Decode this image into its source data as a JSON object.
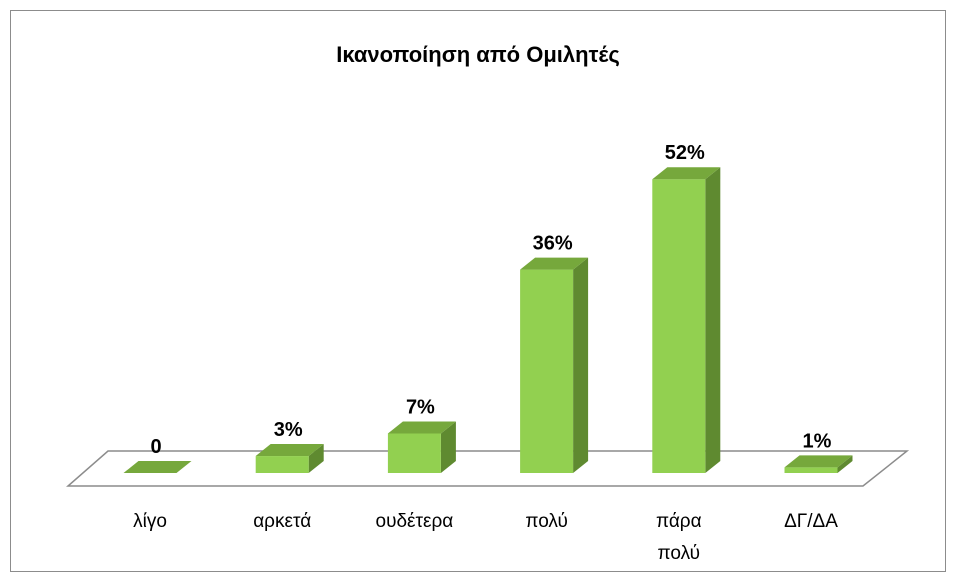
{
  "chart_data": {
    "type": "bar3d",
    "title": "Ικανοποίηση από Ομιλητές",
    "categories": [
      "λίγο",
      "αρκετά",
      "ουδέτερα",
      "πολύ",
      "πάρα πολύ",
      "ΔΓ/ΔΑ"
    ],
    "values": [
      0,
      3,
      7,
      36,
      52,
      1
    ],
    "value_labels": [
      "0",
      "3%",
      "7%",
      "36%",
      "52%",
      "1%"
    ],
    "color": "#92d050"
  }
}
